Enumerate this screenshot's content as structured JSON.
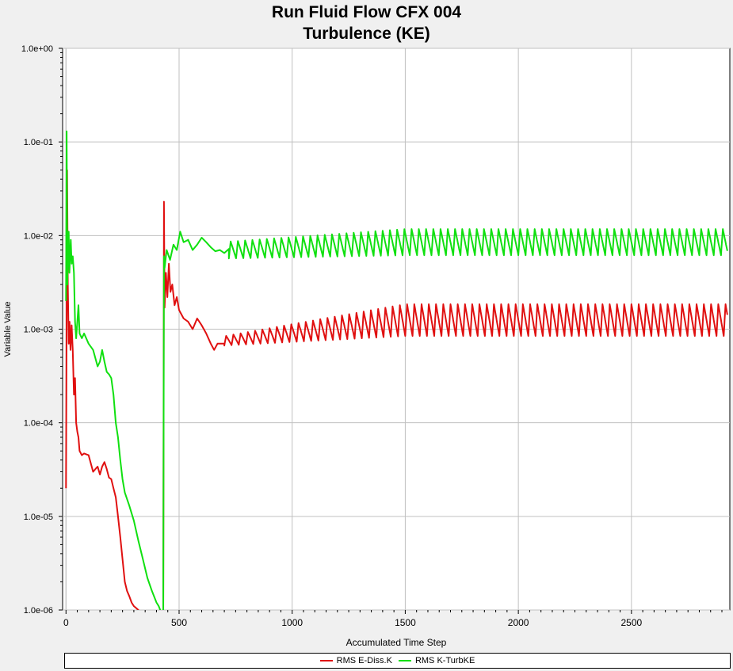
{
  "chart_data": {
    "type": "line",
    "title": "Run Fluid Flow CFX 004",
    "subtitle": "Turbulence (KE)",
    "xlabel": "Accumulated Time Step",
    "ylabel": "Variable Value",
    "xlim": [
      -15,
      2935
    ],
    "x_ticks": [
      0,
      500,
      1000,
      1500,
      2000,
      2500
    ],
    "x_tick_labels": [
      "0",
      "500",
      "1000",
      "1500",
      "2000",
      "2500"
    ],
    "ylim": [
      1e-06,
      1
    ],
    "yscale": "log",
    "y_ticks": [
      1,
      0.1,
      0.01,
      0.001,
      0.0001,
      1e-05,
      1e-06
    ],
    "y_tick_labels": [
      "1.0e+00",
      "1.0e-01",
      "1.0e-02",
      "1.0e-03",
      "1.0e-04",
      "1.0e-05",
      "1.0e-06"
    ],
    "grid": true,
    "legend_position": "bottom",
    "series": [
      {
        "name": "RMS E-Diss.K",
        "color": "#e01010",
        "x": [
          0,
          5,
          8,
          12,
          16,
          20,
          25,
          30,
          35,
          40,
          45,
          50,
          55,
          60,
          70,
          80,
          100,
          120,
          130,
          140,
          150,
          160,
          170,
          180,
          190,
          200,
          210,
          220,
          230,
          240,
          250,
          260,
          270,
          280,
          290,
          300,
          310,
          320,
          330
        ],
        "y": [
          2e-05,
          0.05,
          0.003,
          0.0007,
          0.0012,
          0.0006,
          0.0011,
          0.0006,
          0.0002,
          0.0003,
          0.0001,
          8e-05,
          7e-05,
          5e-05,
          4.5e-05,
          4.7e-05,
          4.5e-05,
          3e-05,
          3.2e-05,
          3.4e-05,
          2.8e-05,
          3.4e-05,
          3.8e-05,
          3.2e-05,
          2.6e-05,
          2.5e-05,
          2e-05,
          1.6e-05,
          1e-05,
          6e-06,
          3.5e-06,
          2e-06,
          1.6e-06,
          1.4e-06,
          1.2e-06,
          1.1e-06,
          1.05e-06,
          1e-06,
          9e-07
        ]
      },
      {
        "name": "RMS K-TurbKE",
        "color": "#10e010",
        "x": [
          0,
          3,
          6,
          9,
          12,
          15,
          18,
          21,
          25,
          30,
          35,
          40,
          45,
          50,
          55,
          60,
          70,
          80,
          100,
          120,
          140,
          150,
          160,
          170,
          180,
          190,
          200,
          210,
          220,
          230,
          240,
          250,
          260,
          280,
          300,
          320,
          340,
          360,
          380,
          400,
          410,
          420,
          430,
          432
        ],
        "y": [
          0.002,
          0.13,
          0.003,
          0.008,
          0.011,
          0.004,
          0.006,
          0.009,
          0.005,
          0.006,
          0.004,
          0.0012,
          0.0008,
          0.0012,
          0.0018,
          0.0009,
          0.0008,
          0.0009,
          0.0007,
          0.0006,
          0.0004,
          0.00045,
          0.0006,
          0.00045,
          0.00035,
          0.00033,
          0.0003,
          0.0002,
          0.0001,
          7e-05,
          4e-05,
          2.5e-05,
          1.8e-05,
          1.3e-05,
          9e-06,
          5.5e-06,
          3.5e-06,
          2.2e-06,
          1.6e-06,
          1.2e-06,
          1.1e-06,
          9.5e-07,
          9e-07,
          9e-07
        ]
      }
    ],
    "restart_segment": [
      {
        "name": "RMS E-Diss.K",
        "start_step": 430,
        "spike_step": 433,
        "spike_value": 0.023,
        "transient_steps": [
          436,
          442,
          448,
          455,
          462,
          470,
          480,
          490,
          500,
          520,
          540,
          560,
          580,
          600,
          620,
          640,
          655,
          670,
          700
        ],
        "transient_values": [
          0.0017,
          0.004,
          0.0022,
          0.005,
          0.0025,
          0.003,
          0.0018,
          0.0022,
          0.0016,
          0.0013,
          0.0012,
          0.001,
          0.0013,
          0.0011,
          0.0009,
          0.0007,
          0.0006,
          0.0007,
          0.0007
        ],
        "base_start": 0.00075,
        "base_end": 0.00125,
        "base_ramp_end_step": 1500,
        "oscillation_period": 32,
        "oscillation_amplitude_start": 0.05,
        "oscillation_amplitude_end": 0.17,
        "end_step": 2925
      },
      {
        "name": "RMS K-TurbKE",
        "start_step": 430,
        "spike_step": 433,
        "spike_value": 0.006,
        "transient_steps": [
          436,
          445,
          460,
          475,
          490,
          505,
          520,
          540,
          560,
          580,
          600,
          620,
          640,
          660,
          680,
          700,
          720
        ],
        "transient_values": [
          0.0045,
          0.007,
          0.0055,
          0.008,
          0.007,
          0.011,
          0.0085,
          0.009,
          0.007,
          0.008,
          0.0095,
          0.0085,
          0.0075,
          0.0068,
          0.007,
          0.0065,
          0.0072
        ],
        "base_start": 0.007,
        "base_end": 0.0085,
        "base_ramp_end_step": 1500,
        "oscillation_period": 32,
        "oscillation_amplitude_start": 0.09,
        "oscillation_amplitude_end": 0.14,
        "end_step": 2925
      }
    ]
  }
}
